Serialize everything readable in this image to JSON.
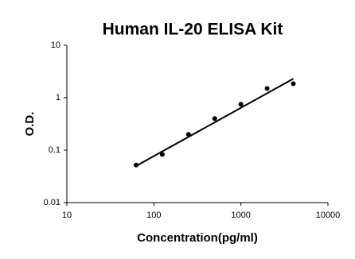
{
  "chart_data": {
    "type": "scatter",
    "title": "Human IL-20 ELISA Kit",
    "x_label": "Concentration(pg/ml)",
    "y_label": "O.D.",
    "x": [
      62.5,
      125,
      250,
      500,
      1000,
      2000,
      4000
    ],
    "values": [
      0.052,
      0.083,
      0.2,
      0.4,
      0.75,
      1.5,
      1.85
    ],
    "color": "#000000",
    "fit_line": {
      "x": [
        62.5,
        4000
      ],
      "values": [
        0.05,
        2.3
      ],
      "color": "#000000"
    },
    "xlim": [
      10,
      10000
    ],
    "xticks": [
      10,
      100,
      1000,
      10000
    ],
    "xscale": "log",
    "ylim": [
      0.01,
      10
    ],
    "yticks": [
      0.01,
      0.1,
      1,
      10
    ],
    "yscale": "log",
    "grid": false
  }
}
